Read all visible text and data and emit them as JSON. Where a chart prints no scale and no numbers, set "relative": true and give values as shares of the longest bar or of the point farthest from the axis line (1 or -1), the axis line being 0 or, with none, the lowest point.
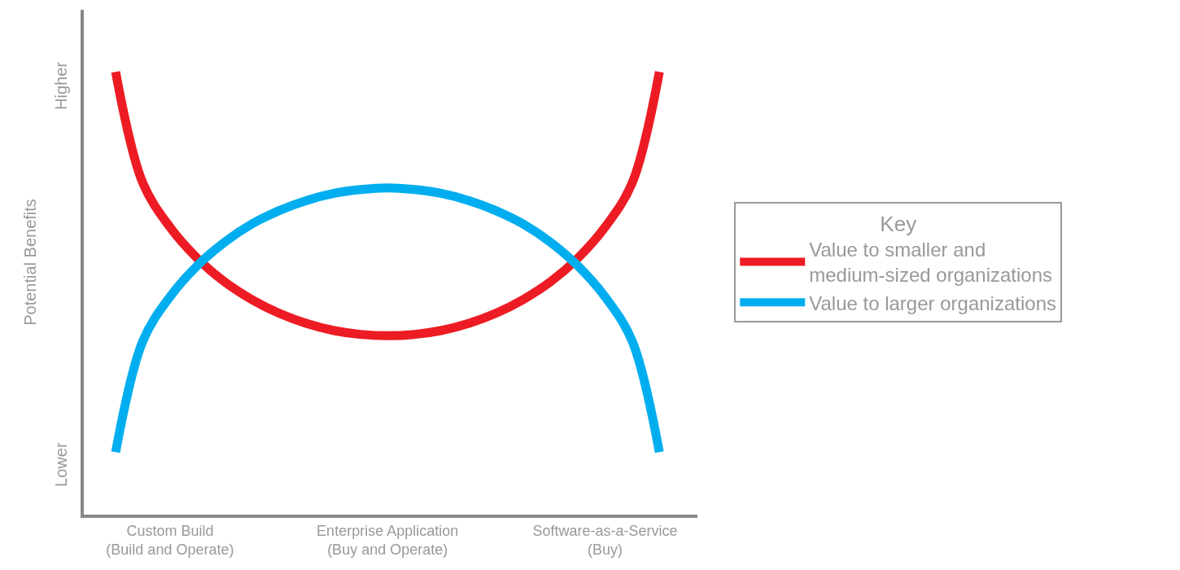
{
  "chart_data": {
    "type": "line",
    "relative": true,
    "ylabel": "Potential Benefits",
    "legend_title": "Key",
    "legend": "right",
    "marker": "none",
    "line_style": "solid",
    "categories": [
      null,
      null,
      "Custom Build\n(Build and Operate)",
      null,
      null,
      null,
      null,
      null,
      null,
      null,
      "Enterprise Application\n(Buy and Operate)",
      null,
      null,
      null,
      null,
      null,
      null,
      null,
      "Software-as-a-Service\n(Buy)",
      null,
      null
    ],
    "series": [
      {
        "name": "Value to smaller and\nmedium-sized organizations",
        "color": "#ed1c24",
        "values": [
          1.0,
          0.749,
          0.649,
          0.579,
          0.526,
          0.486,
          0.455,
          0.432,
          0.416,
          0.407,
          0.404,
          0.407,
          0.416,
          0.432,
          0.455,
          0.486,
          0.526,
          0.579,
          0.649,
          0.749,
          1.0
        ]
      },
      {
        "name": "Value to larger organizations",
        "color": "#00aeef",
        "values": [
          0.141,
          0.392,
          0.492,
          0.562,
          0.615,
          0.656,
          0.686,
          0.709,
          0.725,
          0.734,
          0.738,
          0.734,
          0.725,
          0.709,
          0.686,
          0.656,
          0.615,
          0.562,
          0.492,
          0.392,
          0.141
        ]
      }
    ],
    "annotations": [
      "Higher",
      "Lower"
    ]
  }
}
